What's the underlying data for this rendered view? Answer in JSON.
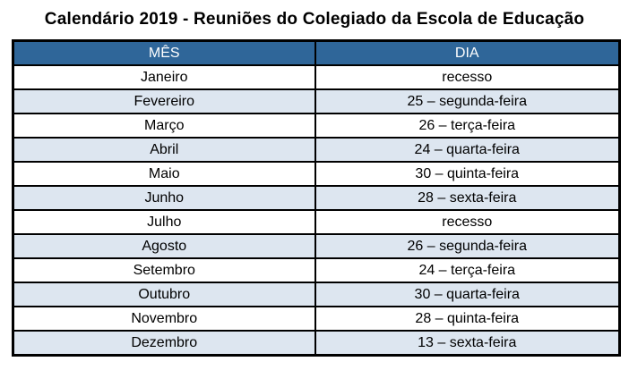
{
  "title": "Calendário 2019 - Reuniões do Colegiado da Escola de Educação",
  "table": {
    "headers": [
      "MÊS",
      "DIA"
    ],
    "rows": [
      {
        "month": "Janeiro",
        "day": "recesso"
      },
      {
        "month": "Fevereiro",
        "day": "25 – segunda-feira"
      },
      {
        "month": "Março",
        "day": "26 – terça-feira"
      },
      {
        "month": "Abril",
        "day": "24 – quarta-feira"
      },
      {
        "month": "Maio",
        "day": "30 – quinta-feira"
      },
      {
        "month": "Junho",
        "day": "28 – sexta-feira"
      },
      {
        "month": "Julho",
        "day": "recesso"
      },
      {
        "month": "Agosto",
        "day": "26 – segunda-feira"
      },
      {
        "month": "Setembro",
        "day": "24 – terça-feira"
      },
      {
        "month": "Outubro",
        "day": "30 – quarta-feira"
      },
      {
        "month": "Novembro",
        "day": "28 – quinta-feira"
      },
      {
        "month": "Dezembro",
        "day": "13 – sexta-feira"
      }
    ]
  },
  "colors": {
    "header_bg": "#2F6699",
    "header_text": "#FFFFFF",
    "row_alt_bg": "#DDE6F0",
    "border": "#000000",
    "title_text": "#000000"
  }
}
